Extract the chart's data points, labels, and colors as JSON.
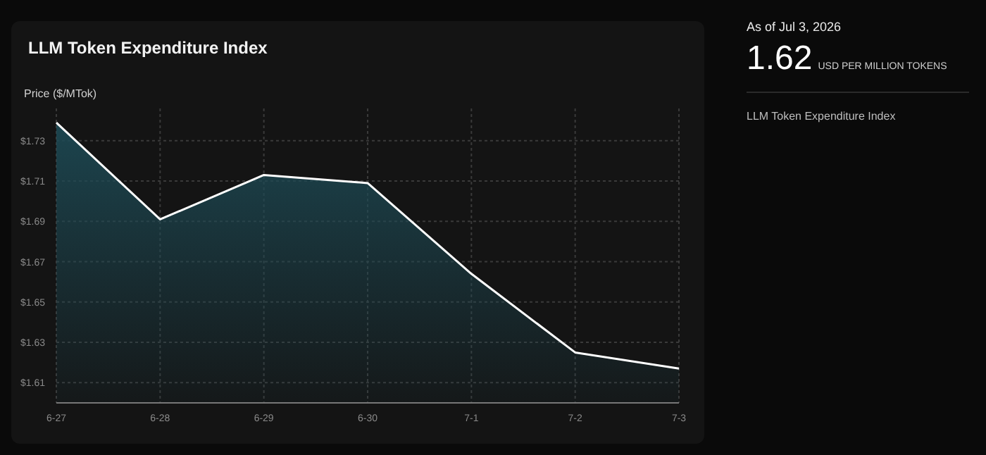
{
  "chart_data": {
    "type": "area",
    "title": "LLM Token Expenditure Index",
    "ylabel": "Price ($/MTok)",
    "categories": [
      "6-27",
      "6-28",
      "6-29",
      "6-30",
      "7-1",
      "7-2",
      "7-3"
    ],
    "series": [
      {
        "color": "#ffffff",
        "values": [
          1.739,
          1.691,
          1.713,
          1.709,
          1.664,
          1.625,
          1.617
        ]
      }
    ],
    "ylim": [
      1.6,
      1.746
    ],
    "yticks": [
      {
        "value": 1.61,
        "label": "$1.61"
      },
      {
        "value": 1.63,
        "label": "$1.63"
      },
      {
        "value": 1.65,
        "label": "$1.65"
      },
      {
        "value": 1.67,
        "label": "$1.67"
      },
      {
        "value": 1.69,
        "label": "$1.69"
      },
      {
        "value": 1.71,
        "label": "$1.71"
      },
      {
        "value": 1.73,
        "label": "$1.73"
      }
    ],
    "grid": true,
    "annotations": [
      "As of Jul 3, 2026",
      "1.62",
      "USD PER MILLION TOKENS",
      "LLM Token Expenditure Index"
    ]
  }
}
